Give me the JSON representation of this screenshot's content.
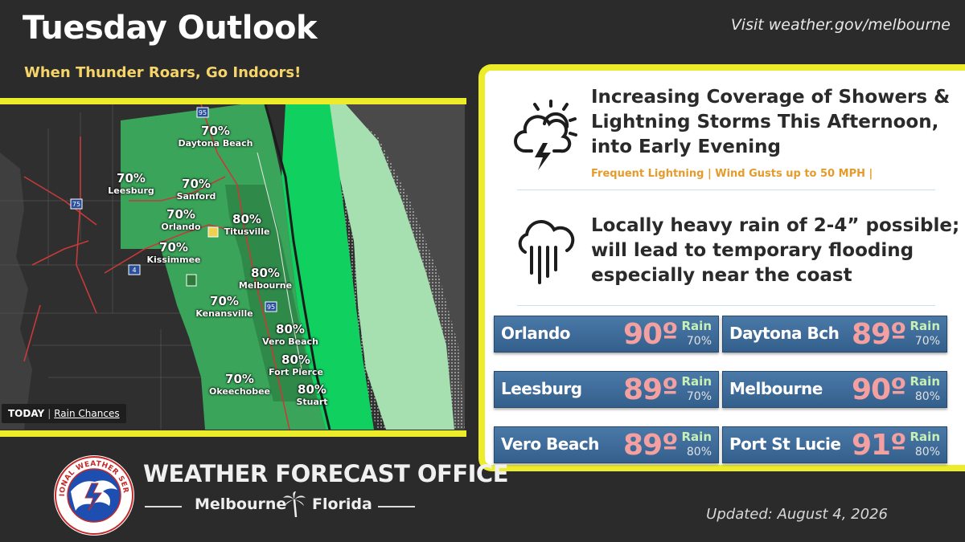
{
  "header": {
    "title": "Tuesday Outlook",
    "subtitle": "When Thunder Roars, Go Indoors!",
    "link": "Visit weather.gov/melbourne"
  },
  "map": {
    "today_label": "TODAY",
    "today_link": "Rain Chances",
    "locations": [
      {
        "pct": "70%",
        "city": "Daytona Beach"
      },
      {
        "pct": "70%",
        "city": "Leesburg"
      },
      {
        "pct": "70%",
        "city": "Sanford"
      },
      {
        "pct": "70%",
        "city": "Orlando"
      },
      {
        "pct": "80%",
        "city": "Titusville"
      },
      {
        "pct": "70%",
        "city": "Kissimmee"
      },
      {
        "pct": "80%",
        "city": "Melbourne"
      },
      {
        "pct": "70%",
        "city": "Kenansville"
      },
      {
        "pct": "80%",
        "city": "Vero Beach"
      },
      {
        "pct": "80%",
        "city": "Fort Pierce"
      },
      {
        "pct": "70%",
        "city": "Okeechobee"
      },
      {
        "pct": "80%",
        "city": "Stuart"
      }
    ],
    "highway_labels": [
      "95",
      "75",
      "4",
      "95"
    ]
  },
  "hazards": [
    {
      "icon": "thunderstorm-icon",
      "lines": [
        "Increasing Coverage of Showers &",
        "Lightning Storms This Afternoon,",
        "into Early Evening"
      ],
      "sub": "Frequent Lightning | Wind Gusts up to 50 MPH |"
    },
    {
      "icon": "heavy-rain-icon",
      "lines": [
        "Locally heavy rain of 2-4” possible;",
        "will lead to temporary flooding",
        "especially near the coast"
      ]
    }
  ],
  "forecasts": [
    {
      "city": "Orlando",
      "temp": "90º",
      "rain_label": "Rain",
      "rain": "70%"
    },
    {
      "city": "Daytona Bch",
      "temp": "89º",
      "rain_label": "Rain",
      "rain": "70%"
    },
    {
      "city": "Leesburg",
      "temp": "89º",
      "rain_label": "Rain",
      "rain": "70%"
    },
    {
      "city": "Melbourne",
      "temp": "90º",
      "rain_label": "Rain",
      "rain": "80%"
    },
    {
      "city": "Vero Beach",
      "temp": "89º",
      "rain_label": "Rain",
      "rain": "80%"
    },
    {
      "city": "Port St Lucie",
      "temp": "91º",
      "rain_label": "Rain",
      "rain": "80%"
    }
  ],
  "footer": {
    "logo_text": "NATIONAL WEATHER SERVICE",
    "office": "WEATHER FORECAST OFFICE",
    "city_left": "Melbourne",
    "city_right": "Florida",
    "updated": "Updated: August 4, 2026"
  },
  "colors": {
    "background": "#2b2b2b",
    "accent_yellow": "#ecec2a",
    "subtitle": "#f5d56a",
    "hazard_sub": "#e59b2b",
    "card": "#3e6b99",
    "temp": "#f5a0a0",
    "rain_green_70": "#3aa55a",
    "rain_green_80": "#2f8a4a",
    "coast_green": "#10d060",
    "offshore_green": "#a6dfb0"
  }
}
